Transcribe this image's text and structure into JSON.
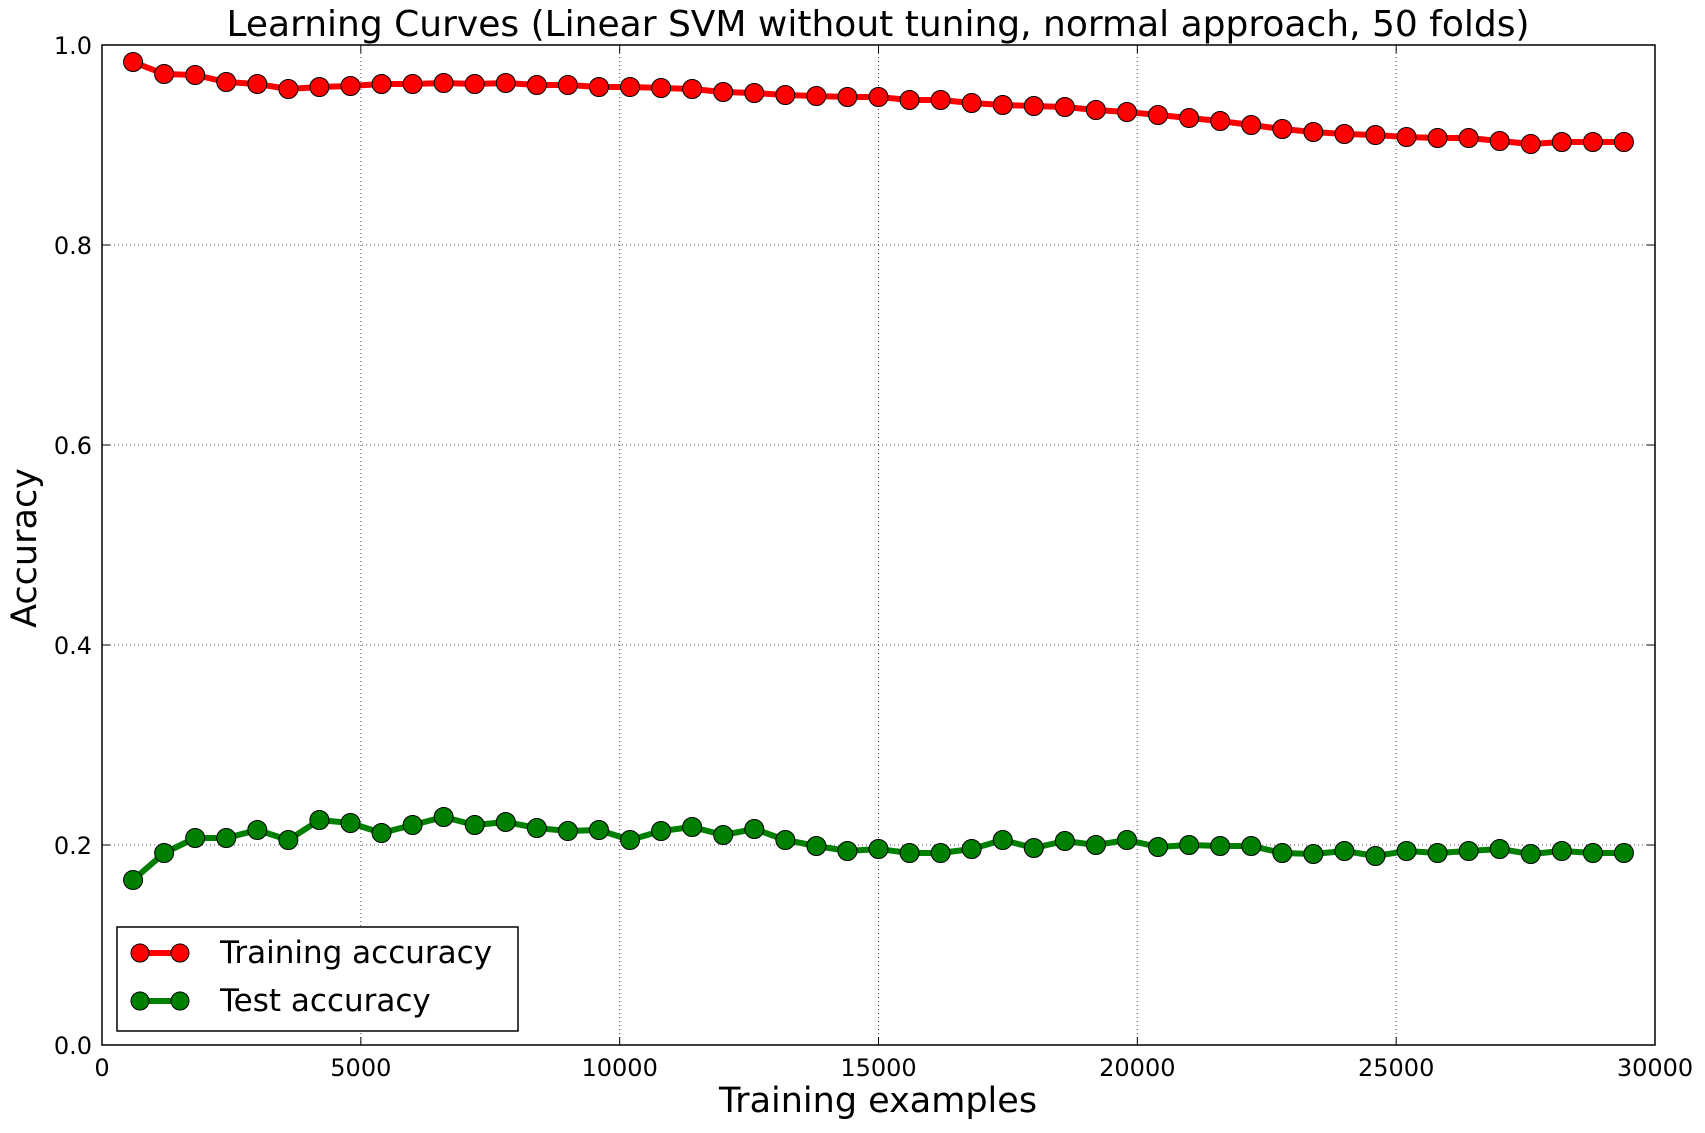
{
  "chart_data": {
    "type": "line",
    "title": "Learning Curves (Linear SVM without tuning, normal approach, 50 folds)",
    "xlabel": "Training examples",
    "ylabel": "Accuracy",
    "xlim": [
      0,
      30000
    ],
    "ylim": [
      0.0,
      1.0
    ],
    "xticks": [
      0,
      5000,
      10000,
      15000,
      20000,
      25000,
      30000
    ],
    "xtick_labels": [
      "0",
      "5000",
      "10000",
      "15000",
      "20000",
      "25000",
      "30000"
    ],
    "yticks": [
      0.0,
      0.2,
      0.4,
      0.6,
      0.8,
      1.0
    ],
    "ytick_labels": [
      "0.0",
      "0.2",
      "0.4",
      "0.6",
      "0.8",
      "1.0"
    ],
    "grid": true,
    "legend_position": "lower-left",
    "x": [
      600,
      1200,
      1800,
      2400,
      3000,
      3600,
      4200,
      4800,
      5400,
      6000,
      6600,
      7200,
      7800,
      8400,
      9000,
      9600,
      10200,
      10800,
      11400,
      12000,
      12600,
      13200,
      13800,
      14400,
      15000,
      15600,
      16200,
      16800,
      17400,
      18000,
      18600,
      19200,
      19800,
      20400,
      21000,
      21600,
      22200,
      22800,
      23400,
      24000,
      24600,
      25200,
      25800,
      26400,
      27000,
      27600,
      28200,
      28800,
      29400
    ],
    "series": [
      {
        "name": "Training accuracy",
        "color": "#ff0000",
        "marker": "circle",
        "values": [
          0.983,
          0.971,
          0.97,
          0.963,
          0.961,
          0.956,
          0.958,
          0.959,
          0.961,
          0.961,
          0.962,
          0.961,
          0.962,
          0.96,
          0.96,
          0.958,
          0.958,
          0.957,
          0.956,
          0.953,
          0.952,
          0.95,
          0.949,
          0.948,
          0.948,
          0.945,
          0.945,
          0.942,
          0.94,
          0.939,
          0.938,
          0.935,
          0.933,
          0.93,
          0.927,
          0.924,
          0.92,
          0.916,
          0.913,
          0.911,
          0.91,
          0.908,
          0.907,
          0.907,
          0.904,
          0.901,
          0.903,
          0.903,
          0.903
        ]
      },
      {
        "name": "Test accuracy",
        "color": "#008000",
        "marker": "circle",
        "values": [
          0.165,
          0.192,
          0.207,
          0.207,
          0.215,
          0.205,
          0.225,
          0.222,
          0.212,
          0.22,
          0.228,
          0.22,
          0.223,
          0.217,
          0.214,
          0.215,
          0.205,
          0.214,
          0.218,
          0.21,
          0.216,
          0.205,
          0.199,
          0.194,
          0.196,
          0.192,
          0.192,
          0.196,
          0.205,
          0.197,
          0.204,
          0.2,
          0.205,
          0.198,
          0.2,
          0.199,
          0.199,
          0.192,
          0.191,
          0.194,
          0.189,
          0.194,
          0.192,
          0.194,
          0.196,
          0.191,
          0.194,
          0.192,
          0.192
        ]
      }
    ]
  }
}
